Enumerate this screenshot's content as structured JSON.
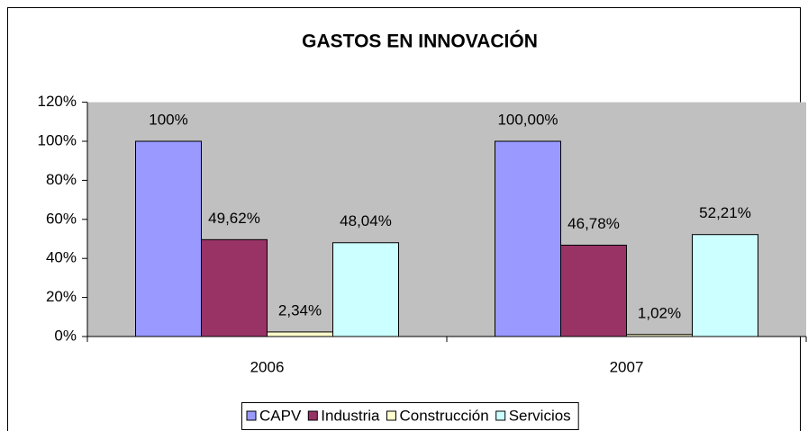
{
  "chart_data": {
    "type": "bar",
    "title": "GASTOS EN INNOVACIÓN",
    "categories": [
      "2006",
      "2007"
    ],
    "series": [
      {
        "name": "CAPV",
        "color": "#9999ff",
        "values": [
          100,
          100
        ],
        "value_labels": [
          "100%",
          "100,00%"
        ]
      },
      {
        "name": "Industria",
        "color": "#993366",
        "values": [
          49.62,
          46.78
        ],
        "value_labels": [
          "49,62%",
          "46,78%"
        ]
      },
      {
        "name": "Construcción",
        "color": "#ffffcc",
        "values": [
          2.34,
          1.02
        ],
        "value_labels": [
          "2,34%",
          "1,02%"
        ]
      },
      {
        "name": "Servicios",
        "color": "#ccffff",
        "values": [
          48.04,
          52.21
        ],
        "value_labels": [
          "48,04%",
          "52,21%"
        ]
      }
    ],
    "ylim": [
      0,
      120
    ],
    "yticks": [
      {
        "value": 0,
        "label": "0%"
      },
      {
        "value": 20,
        "label": "20%"
      },
      {
        "value": 40,
        "label": "40%"
      },
      {
        "value": 60,
        "label": "60%"
      },
      {
        "value": 80,
        "label": "80%"
      },
      {
        "value": 100,
        "label": "100%"
      },
      {
        "value": 120,
        "label": "120%"
      }
    ],
    "legend": "bottom"
  }
}
